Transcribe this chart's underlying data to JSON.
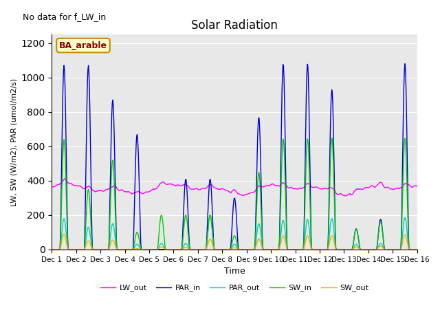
{
  "title": "Solar Radiation",
  "subtitle": "No data for f_LW_in",
  "xlabel": "Time",
  "ylabel": "LW, SW (W/m2), PAR (umol/m2/s)",
  "legend_label": "BA_arable",
  "xlim": [
    0,
    15
  ],
  "ylim": [
    0,
    1250
  ],
  "yticks": [
    0,
    200,
    400,
    600,
    800,
    1000,
    1200
  ],
  "xtick_labels": [
    "Dec 1",
    "Dec 2",
    "Dec 3",
    "Dec 4",
    "Dec 5",
    "Dec 6",
    "Dec 7",
    "Dec 8",
    "Dec 9",
    "Dec 10",
    "Dec 11",
    "Dec 12",
    "Dec 13",
    "Dec 14",
    "Dec 15",
    "Dec 16"
  ],
  "colors": {
    "LW_out": "#ff00ff",
    "PAR_in": "#0000cc",
    "PAR_out": "#00cccc",
    "SW_in": "#00cc00",
    "SW_out": "#ffaa00"
  },
  "background_color": "#e8e8e8",
  "par_in_peaks": [
    1070,
    1070,
    870,
    670,
    0,
    410,
    410,
    300,
    770,
    1080,
    1080,
    930,
    120,
    175,
    1080
  ],
  "sw_in_peaks": [
    640,
    350,
    520,
    100,
    200,
    200,
    200,
    80,
    450,
    645,
    645,
    650,
    120,
    160,
    645
  ],
  "sw_out_peaks": [
    90,
    50,
    55,
    5,
    15,
    12,
    60,
    10,
    60,
    80,
    80,
    80,
    15,
    20,
    85
  ],
  "par_out_peaks": [
    180,
    130,
    150,
    30,
    35,
    35,
    200,
    30,
    150,
    170,
    175,
    180,
    30,
    35,
    185
  ]
}
